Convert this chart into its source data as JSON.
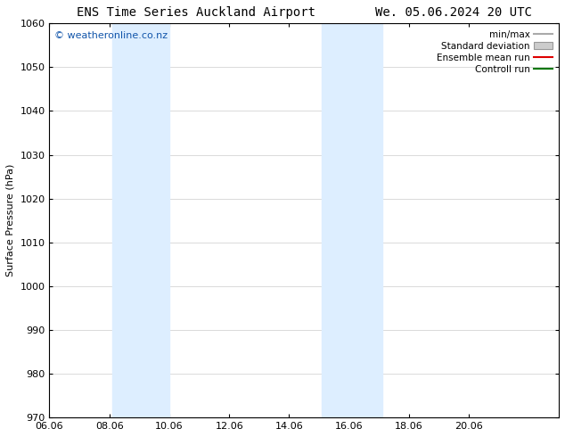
{
  "title": "ENS Time Series Auckland Airport        We. 05.06.2024 20 UTC",
  "ylabel": "Surface Pressure (hPa)",
  "ylim": [
    970,
    1060
  ],
  "yticks": [
    970,
    980,
    990,
    1000,
    1010,
    1020,
    1030,
    1040,
    1050,
    1060
  ],
  "xlim_start": 0,
  "xlim_end": 17,
  "xtick_labels": [
    "06.06",
    "08.06",
    "10.06",
    "12.06",
    "14.06",
    "16.06",
    "18.06",
    "20.06"
  ],
  "xtick_positions": [
    0,
    2,
    4,
    6,
    8,
    10,
    12,
    14
  ],
  "shade_bands": [
    {
      "xstart": 2.1,
      "xend": 4.0
    },
    {
      "xstart": 9.1,
      "xend": 11.1
    }
  ],
  "shade_color": "#ddeeff",
  "watermark": "© weatheronline.co.nz",
  "watermark_color": "#1155aa",
  "legend_items": [
    {
      "label": "min/max",
      "color": "#aaaaaa",
      "type": "line"
    },
    {
      "label": "Standard deviation",
      "color": "#cccccc",
      "type": "box"
    },
    {
      "label": "Ensemble mean run",
      "color": "#dd0000",
      "type": "line"
    },
    {
      "label": "Controll run",
      "color": "#007700",
      "type": "line"
    }
  ],
  "bg_color": "#ffffff",
  "grid_color": "#cccccc",
  "font_size_title": 10,
  "font_size_axis": 8,
  "font_size_tick": 8,
  "font_size_legend": 7.5,
  "font_size_watermark": 8
}
